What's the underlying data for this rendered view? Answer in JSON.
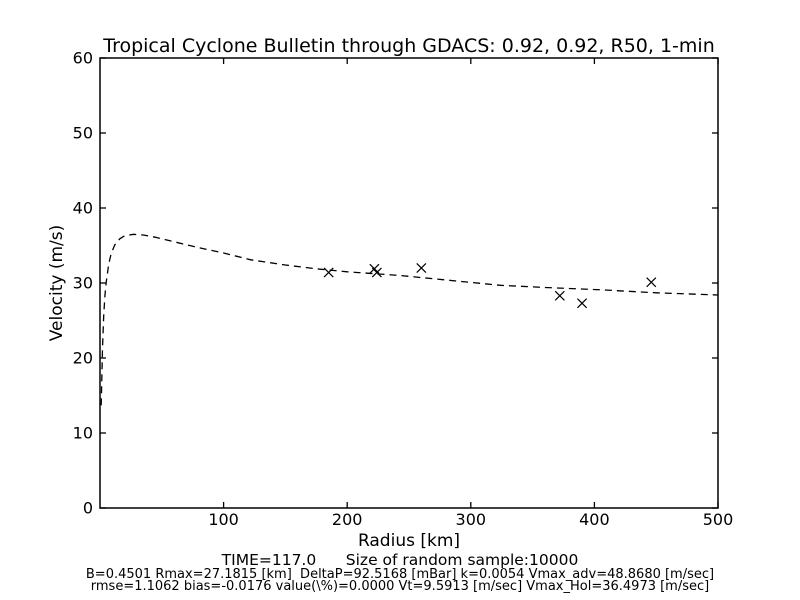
{
  "figure": {
    "background": "#ffffff",
    "foreground": "#000000"
  },
  "chart_data": {
    "type": "line",
    "title": "Tropical Cyclone Bulletin through GDACS: 0.92, 0.92, R50, 1-min",
    "xlabel": "Radius [km]",
    "ylabel": "Velocity (m/s)",
    "xlim": [
      0,
      500
    ],
    "ylim": [
      0,
      60
    ],
    "xticks": [
      100,
      200,
      300,
      400,
      500
    ],
    "yticks": [
      0,
      10,
      20,
      30,
      40,
      50,
      60
    ],
    "grid": false,
    "legend": "none",
    "line_color": "#000000",
    "series": [
      {
        "name": "holland-profile-curve",
        "style": "dashed-line",
        "x": [
          1,
          2,
          3,
          4,
          5,
          7,
          9,
          12,
          16,
          20,
          27.2,
          35,
          45,
          60,
          80,
          100,
          122,
          150,
          175,
          200,
          243,
          280,
          324,
          360,
          405,
          450,
          500
        ],
        "y": [
          13.7,
          21.3,
          25.6,
          28.3,
          30.1,
          32.5,
          33.9,
          35.1,
          35.9,
          36.3,
          36.5,
          36.4,
          36.1,
          35.5,
          34.7,
          34.0,
          33.1,
          32.4,
          31.9,
          31.5,
          31.0,
          30.4,
          29.7,
          29.4,
          29.1,
          28.7,
          28.4
        ]
      },
      {
        "name": "random-sample-points",
        "style": "x-markers",
        "x": [
          185,
          222,
          224,
          260,
          372,
          390,
          446
        ],
        "y": [
          31.4,
          31.9,
          31.4,
          32.0,
          28.3,
          27.3,
          30.1
        ]
      }
    ],
    "annotations": {
      "line1": "TIME=117.0      Size of random sample:10000",
      "line2": "B=0.4501 Rmax=27.1815 [km]  DeltaP=92.5168 [mBar] k=0.0054 Vmax_adv=48.8680 [m/sec]",
      "line3": "rmse=1.1062 bias=-0.0176 value(\\%)=0.0000 Vt=9.5913 [m/sec] Vmax_Hol=36.4973 [m/sec]"
    },
    "params": {
      "TIME": 117.0,
      "sample_size": 10000,
      "B": 0.4501,
      "Rmax_km": 27.1815,
      "DeltaP_mBar": 92.5168,
      "k": 0.0054,
      "Vmax_adv_ms": 48.868,
      "rmse": 1.1062,
      "bias": -0.0176,
      "value_pct": 0.0,
      "Vt_ms": 9.5913,
      "Vmax_Hol_ms": 36.4973
    }
  }
}
